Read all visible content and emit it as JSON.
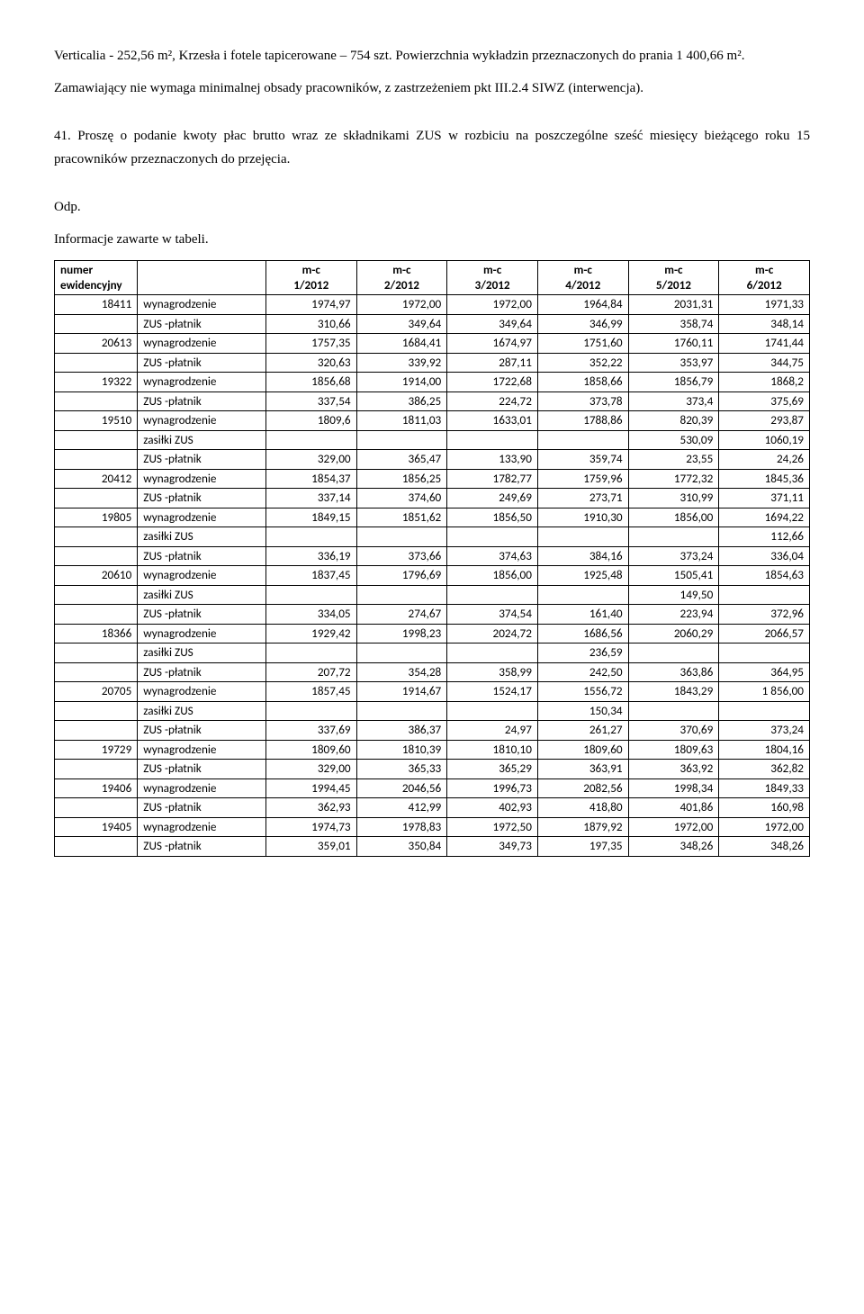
{
  "paragraphs": {
    "p1": "Verticalia - 252,56 m², Krzesła i fotele tapicerowane – 754 szt.  Powierzchnia wykładzin przeznaczonych do prania 1 400,66 m².",
    "p2": "Zamawiający nie wymaga minimalnej obsady pracowników, z zastrzeżeniem pkt III.2.4 SIWZ (interwencja).",
    "p3": "41.    Proszę o podanie kwoty płac brutto wraz ze składnikami ZUS w rozbiciu na poszczególne sześć miesięcy bieżącego roku 15 pracowników przeznaczonych do przejęcia.",
    "p4": "Odp.",
    "p5": "Informacje zawarte w tabeli."
  },
  "table": {
    "headers": {
      "col1_line1": "numer",
      "col1_line2": "ewidencyjny",
      "blank": "",
      "m1_line1": "m-c",
      "m1_line2": "1/2012",
      "m2_line1": "m-c",
      "m2_line2": "2/2012",
      "m3_line1": "m-c",
      "m3_line2": "3/2012",
      "m4_line1": "m-c",
      "m4_line2": "4/2012",
      "m5_line1": "m-c",
      "m5_line2": "5/2012",
      "m6_line1": "m-c",
      "m6_line2": "6/2012"
    },
    "labels": {
      "wyn": "wynagrodzenie",
      "zus": "ZUS -płatnik",
      "zas": "zasiłki ZUS"
    },
    "rows": [
      {
        "id": "18411",
        "lines": [
          {
            "type": "wyn",
            "v": [
              "1974,97",
              "1972,00",
              "1972,00",
              "1964,84",
              "2031,31",
              "1971,33"
            ]
          },
          {
            "type": "zus",
            "v": [
              "310,66",
              "349,64",
              "349,64",
              "346,99",
              "358,74",
              "348,14"
            ]
          }
        ]
      },
      {
        "id": "20613",
        "lines": [
          {
            "type": "wyn",
            "v": [
              "1757,35",
              "1684,41",
              "1674,97",
              "1751,60",
              "1760,11",
              "1741,44"
            ]
          },
          {
            "type": "zus",
            "v": [
              "320,63",
              "339,92",
              "287,11",
              "352,22",
              "353,97",
              "344,75"
            ]
          }
        ]
      },
      {
        "id": "19322",
        "lines": [
          {
            "type": "wyn",
            "v": [
              "1856,68",
              "1914,00",
              "1722,68",
              "1858,66",
              "1856,79",
              "1868,2"
            ]
          },
          {
            "type": "zus",
            "v": [
              "337,54",
              "386,25",
              "224,72",
              "373,78",
              "373,4",
              "375,69"
            ]
          }
        ]
      },
      {
        "id": "19510",
        "lines": [
          {
            "type": "wyn",
            "v": [
              "1809,6",
              "1811,03",
              "1633,01",
              "1788,86",
              "820,39",
              "293,87"
            ]
          },
          {
            "type": "zas",
            "v": [
              "",
              "",
              "",
              "",
              "530,09",
              "1060,19"
            ]
          },
          {
            "type": "zus",
            "v": [
              "329,00",
              "365,47",
              "133,90",
              "359,74",
              "23,55",
              "24,26"
            ]
          }
        ]
      },
      {
        "id": "20412",
        "lines": [
          {
            "type": "wyn",
            "v": [
              "1854,37",
              "1856,25",
              "1782,77",
              "1759,96",
              "1772,32",
              "1845,36"
            ]
          },
          {
            "type": "zus",
            "v": [
              "337,14",
              "374,60",
              "249,69",
              "273,71",
              "310,99",
              "371,11"
            ]
          }
        ]
      },
      {
        "id": "19805",
        "lines": [
          {
            "type": "wyn",
            "v": [
              "1849,15",
              "1851,62",
              "1856,50",
              "1910,30",
              "1856,00",
              "1694,22"
            ]
          },
          {
            "type": "zas",
            "v": [
              "",
              "",
              "",
              "",
              "",
              "112,66"
            ]
          },
          {
            "type": "zus",
            "v": [
              "336,19",
              "373,66",
              "374,63",
              "384,16",
              "373,24",
              "336,04"
            ]
          }
        ]
      },
      {
        "id": "20610",
        "lines": [
          {
            "type": "wyn",
            "v": [
              "1837,45",
              "1796,69",
              "1856,00",
              "1925,48",
              "1505,41",
              "1854,63"
            ]
          },
          {
            "type": "zas",
            "v": [
              "",
              "",
              "",
              "",
              "149,50",
              ""
            ]
          },
          {
            "type": "zus",
            "v": [
              "334,05",
              "274,67",
              "374,54",
              "161,40",
              "223,94",
              "372,96"
            ]
          }
        ]
      },
      {
        "id": "18366",
        "lines": [
          {
            "type": "wyn",
            "v": [
              "1929,42",
              "1998,23",
              "2024,72",
              "1686,56",
              "2060,29",
              "2066,57"
            ]
          },
          {
            "type": "zas",
            "v": [
              "",
              "",
              "",
              "236,59",
              "",
              ""
            ]
          },
          {
            "type": "zus",
            "v": [
              "207,72",
              "354,28",
              "358,99",
              "242,50",
              "363,86",
              "364,95"
            ]
          }
        ]
      },
      {
        "id": "20705",
        "lines": [
          {
            "type": "wyn",
            "v": [
              "1857,45",
              "1914,67",
              "1524,17",
              "1556,72",
              "1843,29",
              "1 856,00"
            ]
          },
          {
            "type": "zas",
            "v": [
              "",
              "",
              "",
              "150,34",
              "",
              ""
            ]
          },
          {
            "type": "zus",
            "v": [
              "337,69",
              "386,37",
              "24,97",
              "261,27",
              "370,69",
              "373,24"
            ]
          }
        ]
      },
      {
        "id": "19729",
        "lines": [
          {
            "type": "wyn",
            "v": [
              "1809,60",
              "1810,39",
              "1810,10",
              "1809,60",
              "1809,63",
              "1804,16"
            ]
          },
          {
            "type": "zus",
            "v": [
              "329,00",
              "365,33",
              "365,29",
              "363,91",
              "363,92",
              "362,82"
            ]
          }
        ]
      },
      {
        "id": "19406",
        "lines": [
          {
            "type": "wyn",
            "v": [
              "1994,45",
              "2046,56",
              "1996,73",
              "2082,56",
              "1998,34",
              "1849,33"
            ]
          },
          {
            "type": "zus",
            "v": [
              "362,93",
              "412,99",
              "402,93",
              "418,80",
              "401,86",
              "160,98"
            ]
          }
        ]
      },
      {
        "id": "19405",
        "lines": [
          {
            "type": "wyn",
            "v": [
              "1974,73",
              "1978,83",
              "1972,50",
              "1879,92",
              "1972,00",
              "1972,00"
            ]
          },
          {
            "type": "zus",
            "v": [
              "359,01",
              "350,84",
              "349,73",
              "197,35",
              "348,26",
              "348,26"
            ]
          }
        ]
      }
    ]
  }
}
